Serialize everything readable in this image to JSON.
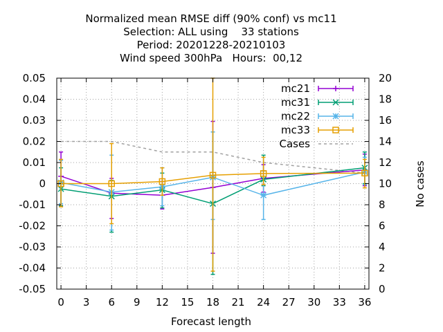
{
  "chart_data": {
    "type": "line",
    "title": [
      "Normalized mean RMSE diff (90% conf) vs mc11",
      "Selection: ALL using    33 stations",
      "Period: 20201228-20210103",
      "Wind speed 300hPa   Hours:  00,12"
    ],
    "xlabel": "Forecast length",
    "ylabel": "",
    "y2label": "No cases",
    "xlim": [
      -0.5,
      36.5
    ],
    "ylim": [
      -0.05,
      0.05
    ],
    "y2lim": [
      0,
      20
    ],
    "xticks": [
      "0",
      "3",
      "6",
      "9",
      "12",
      "15",
      "18",
      "21",
      "24",
      "27",
      "30",
      "33",
      "36"
    ],
    "yticks": [
      "-0.05",
      "-0.04",
      "-0.03",
      "-0.02",
      "-0.01",
      "0",
      "0.01",
      "0.02",
      "0.03",
      "0.04",
      "0.05"
    ],
    "y2ticks": [
      "0",
      "2",
      "4",
      "6",
      "8",
      "10",
      "12",
      "14",
      "16",
      "18",
      "20"
    ],
    "grid": true,
    "legend_position": "top-right",
    "series": [
      {
        "name": "mc21",
        "color": "#9400d3",
        "marker": "plus",
        "x": [
          0,
          6,
          12,
          18,
          24,
          36
        ],
        "y": [
          0.0035,
          -0.0045,
          -0.0055,
          -0.0018,
          0.0025,
          0.0065
        ],
        "err_low": [
          -0.0105,
          -0.0165,
          -0.012,
          -0.033,
          -0.004,
          -0.001
        ],
        "err_high": [
          0.015,
          0.0025,
          0.001,
          0.0295,
          0.009,
          0.014
        ]
      },
      {
        "name": "mc31",
        "color": "#009e73",
        "marker": "x",
        "x": [
          0,
          6,
          12,
          18,
          24,
          36
        ],
        "y": [
          -0.0025,
          -0.006,
          -0.003,
          -0.0095,
          0.002,
          0.0075
        ],
        "err_low": [
          -0.0105,
          -0.023,
          -0.0115,
          -0.043,
          -0.001,
          0.0
        ],
        "err_high": [
          0.0075,
          0.0015,
          0.005,
          0.0245,
          0.0135,
          0.015
        ]
      },
      {
        "name": "mc22",
        "color": "#56b4e9",
        "marker": "star",
        "x": [
          0,
          6,
          12,
          18,
          24,
          36
        ],
        "y": [
          0.0005,
          -0.004,
          -0.0015,
          0.003,
          -0.0055,
          0.0055
        ],
        "err_low": [
          -0.0095,
          -0.022,
          -0.0105,
          -0.017,
          -0.017,
          -0.0005
        ],
        "err_high": [
          0.011,
          0.0135,
          0.0075,
          0.0245,
          0.006,
          0.0125
        ]
      },
      {
        "name": "mc33",
        "color": "#e69f00",
        "marker": "square",
        "x": [
          0,
          6,
          12,
          18,
          24,
          36
        ],
        "y": [
          0.0,
          0.0,
          0.001,
          0.004,
          0.0048,
          0.005
        ],
        "err_low": [
          -0.011,
          -0.019,
          -0.0055,
          -0.0415,
          -0.0005,
          -0.002
        ],
        "err_high": [
          0.0115,
          0.019,
          0.0075,
          0.05,
          0.0125,
          0.0115
        ]
      }
    ],
    "cases": {
      "name": "Cases",
      "color": "#a0a0a0",
      "style": "dashed",
      "x": [
        0,
        6,
        12,
        18,
        24,
        36
      ],
      "y": [
        14,
        14,
        13,
        13,
        12,
        11
      ]
    }
  }
}
